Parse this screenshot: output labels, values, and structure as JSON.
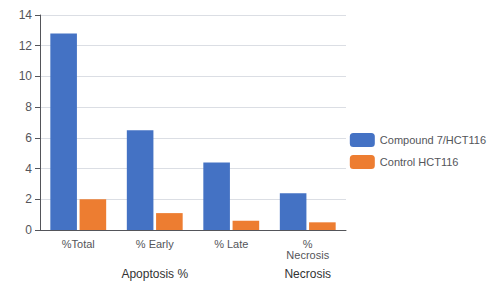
{
  "chart_data": {
    "type": "bar",
    "categories": [
      "%Total",
      "% Early",
      "% Late",
      "%\nNecrosis"
    ],
    "series": [
      {
        "name": "Compound 7/HCT116",
        "color": "#4472C4",
        "values": [
          12.8,
          6.5,
          4.4,
          2.4
        ]
      },
      {
        "name": "Control HCT116",
        "color": "#ED7D31",
        "values": [
          2.0,
          1.1,
          0.6,
          0.5
        ]
      }
    ],
    "ylim": [
      0,
      14
    ],
    "yticks": [
      0,
      2,
      4,
      6,
      8,
      10,
      12,
      14
    ],
    "grid": true,
    "legend": "right",
    "annotations": [
      {
        "text": "Apoptosis %",
        "x": "% Early"
      },
      {
        "text": "Necrosis",
        "x": "%\nNecrosis"
      }
    ]
  }
}
